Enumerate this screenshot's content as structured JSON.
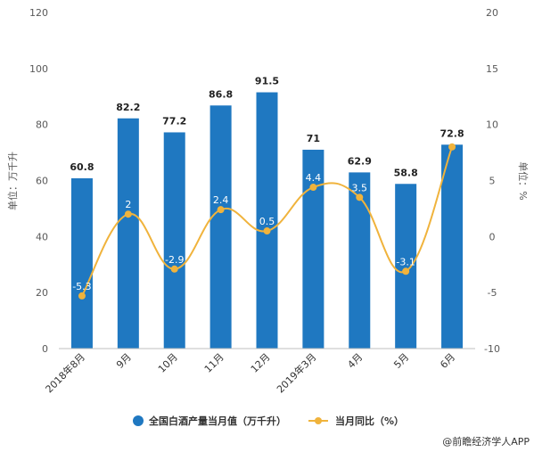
{
  "chart_data": {
    "type": "bar",
    "categories": [
      "2018年8月",
      "9月",
      "10月",
      "11月",
      "12月",
      "2019年3月",
      "4月",
      "5月",
      "6月"
    ],
    "series": [
      {
        "name": "全国白酒产量当月值（万千升）",
        "type": "bar",
        "axis": "left",
        "color": "#1f78c1",
        "values": [
          60.8,
          82.2,
          77.2,
          86.8,
          91.5,
          71,
          62.9,
          58.8,
          72.8
        ],
        "labels": [
          "60.8",
          "82.2",
          "77.2",
          "86.8",
          "91.5",
          "71",
          "62.9",
          "58.8",
          "72.8"
        ]
      },
      {
        "name": "当月同比（%）",
        "type": "line",
        "axis": "right",
        "color": "#f0b33c",
        "values": [
          -5.3,
          2,
          -2.9,
          2.4,
          0.5,
          4.4,
          3.5,
          -3.1,
          8
        ],
        "labels": [
          "-5.3",
          "2",
          "-2.9",
          "2.4",
          "0.5",
          "4.4",
          "3.5",
          "-3.1",
          ""
        ]
      }
    ],
    "ylabel": "单位：万千升",
    "ylabel_right": "单位：%",
    "ylim": [
      0,
      120
    ],
    "ylim_right": [
      -10,
      20
    ],
    "yticks": [
      "0",
      "20",
      "40",
      "60",
      "80",
      "100",
      "120"
    ],
    "yticks_right": [
      "-10",
      "-5",
      "0",
      "5",
      "10",
      "15",
      "20"
    ],
    "grid": false,
    "legend_position": "bottom"
  },
  "credit": "@前瞻经济学人APP"
}
